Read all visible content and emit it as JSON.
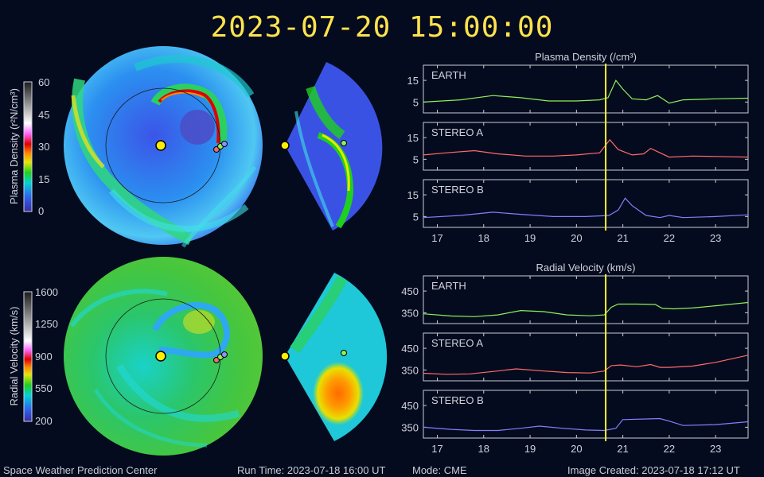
{
  "title": "2023-07-20 15:00:00",
  "colorbars": {
    "density": {
      "label": "Plasma Density (r²N/cm³)",
      "ticks": [
        "60",
        "45",
        "30",
        "15",
        "0"
      ]
    },
    "velocity": {
      "label": "Radial Velocity (km/s)",
      "ticks": [
        "1600",
        "1250",
        "900",
        "550",
        "200"
      ]
    }
  },
  "footer": {
    "org": "Space Weather Prediction Center",
    "runtime": "Run Time: 2023-07-18 16:00 UT",
    "mode": "Mode: CME",
    "created": "Image Created: 2023-07-18 17:12 UT"
  },
  "chart_data": [
    {
      "type": "line",
      "title": "Plasma Density (/cm³)",
      "x_ticks": [
        "17",
        "18",
        "19",
        "20",
        "21",
        "22",
        "23"
      ],
      "xlim": [
        16.7,
        23.7
      ],
      "ylim": [
        0,
        22
      ],
      "y_ticks": [
        5,
        15
      ],
      "current_time": 20.63,
      "series": [
        {
          "name": "EARTH",
          "color": "#8cf05a",
          "x": [
            16.7,
            17.5,
            18.2,
            18.8,
            19.4,
            20.0,
            20.5,
            20.68,
            20.85,
            21.0,
            21.2,
            21.5,
            21.75,
            22.0,
            22.3,
            23.0,
            23.7
          ],
          "y": [
            5,
            6,
            8,
            7,
            5.5,
            5.5,
            6,
            7,
            15,
            11,
            6.5,
            6,
            8,
            4.5,
            6,
            6.5,
            6.8
          ]
        },
        {
          "name": "STEREO A",
          "color": "#ff6a6a",
          "x": [
            16.7,
            17.2,
            17.8,
            18.3,
            18.9,
            19.5,
            20.0,
            20.5,
            20.72,
            20.9,
            21.2,
            21.45,
            21.6,
            21.8,
            22.0,
            22.5,
            23.0,
            23.7
          ],
          "y": [
            7,
            8,
            9,
            7.5,
            6.5,
            6.5,
            7,
            8,
            14,
            9.5,
            7,
            7.5,
            10,
            8,
            6,
            6.5,
            6.3,
            6
          ]
        },
        {
          "name": "STEREO B",
          "color": "#8080ff",
          "x": [
            16.7,
            17.5,
            18.2,
            18.8,
            19.5,
            20.2,
            20.7,
            20.9,
            21.05,
            21.2,
            21.5,
            21.8,
            22.0,
            22.3,
            23.0,
            23.7
          ],
          "y": [
            4.5,
            5.5,
            7,
            6,
            5,
            5,
            5.5,
            8,
            13.5,
            10,
            5.5,
            4.5,
            5.5,
            4.5,
            5,
            5.8
          ]
        }
      ]
    },
    {
      "type": "line",
      "title": "Radial Velocity (km/s)",
      "x_ticks": [
        "17",
        "18",
        "19",
        "20",
        "21",
        "22",
        "23"
      ],
      "xlim": [
        16.7,
        23.7
      ],
      "ylim": [
        300,
        520
      ],
      "y_ticks": [
        350,
        450
      ],
      "current_time": 20.63,
      "series": [
        {
          "name": "EARTH",
          "color": "#8cf05a",
          "x": [
            16.7,
            17.3,
            17.8,
            18.3,
            18.8,
            19.3,
            19.8,
            20.3,
            20.6,
            20.75,
            20.9,
            21.3,
            21.7,
            21.85,
            22.1,
            22.5,
            23.0,
            23.7
          ],
          "y": [
            345,
            335,
            332,
            340,
            360,
            355,
            340,
            336,
            340,
            375,
            390,
            390,
            388,
            370,
            368,
            372,
            382,
            397
          ]
        },
        {
          "name": "STEREO A",
          "color": "#ff6a6a",
          "x": [
            16.7,
            17.2,
            17.7,
            18.2,
            18.7,
            19.3,
            19.8,
            20.3,
            20.6,
            20.75,
            20.95,
            21.3,
            21.6,
            21.8,
            22.0,
            22.5,
            23.0,
            23.7
          ],
          "y": [
            335,
            330,
            332,
            343,
            355,
            345,
            338,
            336,
            345,
            370,
            373,
            365,
            375,
            362,
            362,
            368,
            385,
            418
          ]
        },
        {
          "name": "STEREO B",
          "color": "#8080ff",
          "x": [
            16.7,
            17.3,
            17.8,
            18.3,
            18.8,
            19.2,
            19.7,
            20.2,
            20.6,
            20.85,
            21.0,
            21.5,
            21.8,
            22.0,
            22.3,
            23.0,
            23.7
          ],
          "y": [
            350,
            340,
            335,
            335,
            345,
            355,
            345,
            337,
            335,
            345,
            385,
            388,
            390,
            378,
            358,
            362,
            375
          ]
        }
      ]
    }
  ]
}
